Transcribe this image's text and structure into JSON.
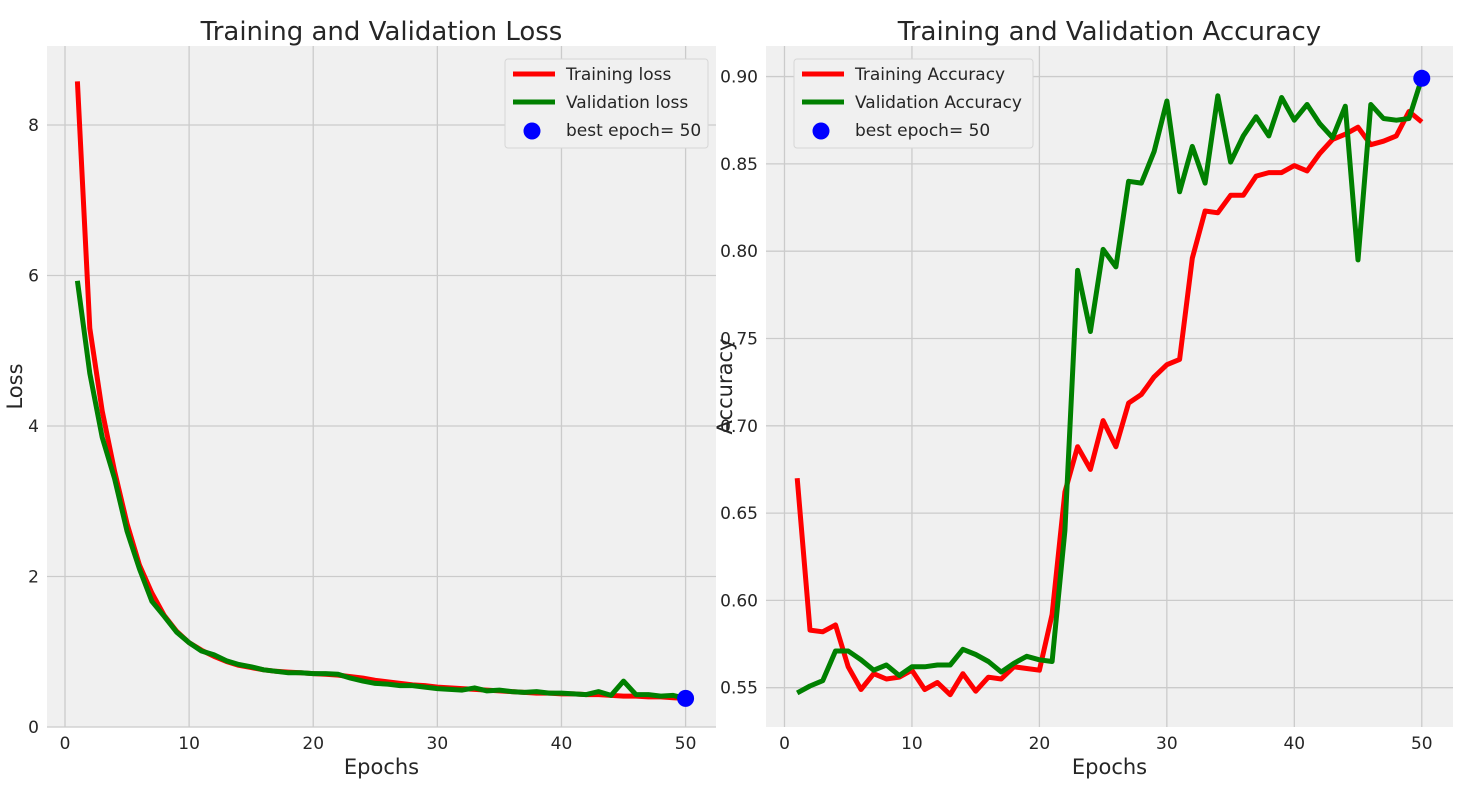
{
  "chart_data": [
    {
      "type": "line",
      "title": "Training and Validation Loss",
      "xlabel": "Epochs",
      "ylabel": "Loss",
      "xlim": [
        -1.45,
        52.45
      ],
      "ylim": [
        0,
        9.05
      ],
      "xticks": [
        0,
        10,
        20,
        30,
        40,
        50
      ],
      "yticks": [
        0,
        2,
        4,
        6,
        8
      ],
      "xtick_labels": [
        "0",
        "10",
        "20",
        "30",
        "40",
        "50"
      ],
      "ytick_labels": [
        "0",
        "2",
        "4",
        "6",
        "8"
      ],
      "grid": true,
      "legend": "top-right",
      "x": [
        1,
        2,
        3,
        4,
        5,
        6,
        7,
        8,
        9,
        10,
        11,
        12,
        13,
        14,
        15,
        16,
        17,
        18,
        19,
        20,
        21,
        22,
        23,
        24,
        25,
        26,
        27,
        28,
        29,
        30,
        31,
        32,
        33,
        34,
        35,
        36,
        37,
        38,
        39,
        40,
        41,
        42,
        43,
        44,
        45,
        46,
        47,
        48,
        49,
        50
      ],
      "series": [
        {
          "name": "Training loss",
          "color": "#ff0000",
          "values": [
            8.58,
            5.3,
            4.2,
            3.4,
            2.7,
            2.15,
            1.78,
            1.48,
            1.27,
            1.12,
            1.02,
            0.94,
            0.87,
            0.82,
            0.79,
            0.76,
            0.74,
            0.73,
            0.72,
            0.71,
            0.7,
            0.69,
            0.67,
            0.65,
            0.62,
            0.6,
            0.58,
            0.56,
            0.55,
            0.53,
            0.52,
            0.51,
            0.5,
            0.49,
            0.48,
            0.47,
            0.46,
            0.45,
            0.45,
            0.44,
            0.44,
            0.43,
            0.43,
            0.42,
            0.41,
            0.41,
            0.4,
            0.4,
            0.39,
            0.38
          ]
        },
        {
          "name": "Validation loss",
          "color": "#008000",
          "values": [
            5.93,
            4.7,
            3.85,
            3.3,
            2.6,
            2.1,
            1.67,
            1.47,
            1.26,
            1.12,
            1.01,
            0.96,
            0.88,
            0.83,
            0.8,
            0.76,
            0.74,
            0.72,
            0.72,
            0.71,
            0.71,
            0.7,
            0.65,
            0.61,
            0.58,
            0.57,
            0.55,
            0.55,
            0.53,
            0.51,
            0.5,
            0.49,
            0.52,
            0.48,
            0.49,
            0.47,
            0.46,
            0.47,
            0.45,
            0.45,
            0.44,
            0.43,
            0.47,
            0.42,
            0.61,
            0.43,
            0.43,
            0.41,
            0.42,
            0.38
          ]
        }
      ],
      "best_point": {
        "label": "best epoch= 50",
        "x": 50,
        "y": 0.38,
        "color": "#0000ff"
      }
    },
    {
      "type": "line",
      "title": "Training and Validation Accuracy",
      "xlabel": "Epochs",
      "ylabel": "Accuracy",
      "xlim": [
        -1.45,
        52.45
      ],
      "ylim": [
        0.5275,
        0.9175
      ],
      "xticks": [
        0,
        10,
        20,
        30,
        40,
        50
      ],
      "yticks": [
        0.55,
        0.6,
        0.65,
        0.7,
        0.75,
        0.8,
        0.85,
        0.9
      ],
      "xtick_labels": [
        "0",
        "10",
        "20",
        "30",
        "40",
        "50"
      ],
      "ytick_labels": [
        "0.55",
        "0.60",
        "0.65",
        "0.70",
        "0.75",
        "0.80",
        "0.85",
        "0.90"
      ],
      "grid": true,
      "legend": "top-left",
      "x": [
        1,
        2,
        3,
        4,
        5,
        6,
        7,
        8,
        9,
        10,
        11,
        12,
        13,
        14,
        15,
        16,
        17,
        18,
        19,
        20,
        21,
        22,
        23,
        24,
        25,
        26,
        27,
        28,
        29,
        30,
        31,
        32,
        33,
        34,
        35,
        36,
        37,
        38,
        39,
        40,
        41,
        42,
        43,
        44,
        45,
        46,
        47,
        48,
        49,
        50
      ],
      "series": [
        {
          "name": "Training Accuracy",
          "color": "#ff0000",
          "values": [
            0.67,
            0.583,
            0.582,
            0.586,
            0.562,
            0.549,
            0.558,
            0.555,
            0.556,
            0.56,
            0.549,
            0.553,
            0.546,
            0.558,
            0.548,
            0.556,
            0.555,
            0.562,
            0.561,
            0.56,
            0.592,
            0.662,
            0.688,
            0.675,
            0.703,
            0.688,
            0.713,
            0.718,
            0.728,
            0.735,
            0.738,
            0.796,
            0.823,
            0.822,
            0.832,
            0.832,
            0.843,
            0.845,
            0.845,
            0.849,
            0.846,
            0.856,
            0.864,
            0.867,
            0.871,
            0.861,
            0.863,
            0.866,
            0.88,
            0.874
          ]
        },
        {
          "name": "Validation Accuracy",
          "color": "#008000",
          "values": [
            0.547,
            0.551,
            0.554,
            0.571,
            0.571,
            0.566,
            0.56,
            0.563,
            0.557,
            0.562,
            0.562,
            0.563,
            0.563,
            0.572,
            0.569,
            0.565,
            0.559,
            0.564,
            0.568,
            0.566,
            0.565,
            0.64,
            0.789,
            0.754,
            0.801,
            0.791,
            0.84,
            0.839,
            0.857,
            0.886,
            0.834,
            0.86,
            0.839,
            0.889,
            0.851,
            0.866,
            0.877,
            0.866,
            0.888,
            0.875,
            0.884,
            0.873,
            0.865,
            0.883,
            0.795,
            0.884,
            0.876,
            0.875,
            0.876,
            0.899
          ]
        }
      ],
      "best_point": {
        "label": "best epoch= 50",
        "x": 50,
        "y": 0.899,
        "color": "#0000ff"
      }
    }
  ]
}
